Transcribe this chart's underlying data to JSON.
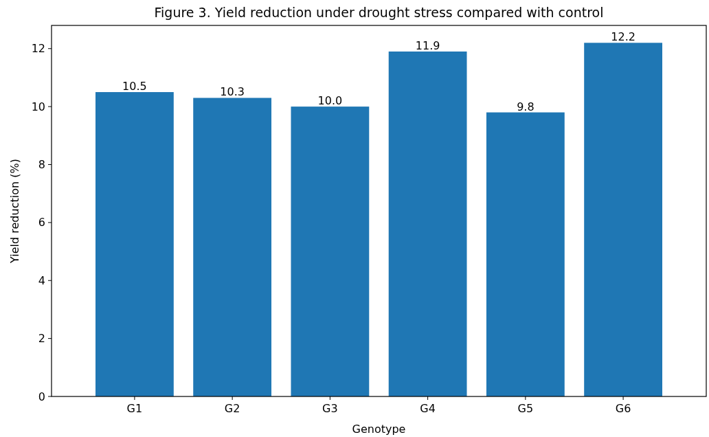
{
  "chart_data": {
    "type": "bar",
    "title": "Figure 3. Yield reduction under drought stress compared with control",
    "xlabel": "Genotype",
    "ylabel": "Yield reduction (%)",
    "categories": [
      "G1",
      "G2",
      "G3",
      "G4",
      "G5",
      "G6"
    ],
    "values": [
      10.5,
      10.3,
      10.0,
      11.9,
      9.8,
      12.2
    ],
    "value_labels": [
      "10.5",
      "10.3",
      "10.0",
      "11.9",
      "9.8",
      "12.2"
    ],
    "color": "#1f77b4",
    "ylim": [
      0,
      12.8
    ],
    "yticks": [
      0,
      2,
      4,
      6,
      8,
      10,
      12
    ],
    "grid": false
  }
}
